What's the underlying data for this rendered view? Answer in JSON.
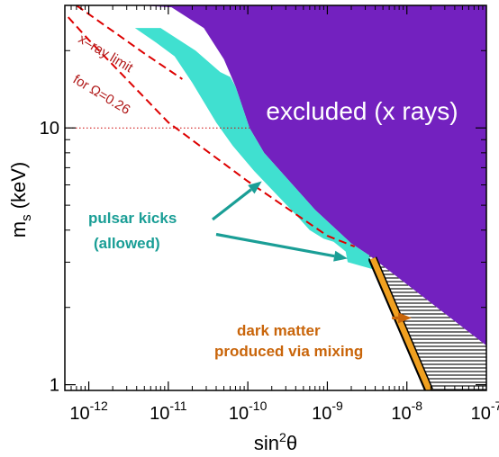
{
  "chart_data": {
    "type": "area",
    "title": "",
    "xlabel": "sin",
    "xlabel_sup": "2",
    "xlabel_tail": "θ",
    "ylabel": "m",
    "ylabel_sub": "s",
    "ylabel_tail": " (keV)",
    "x_scale": "log",
    "y_scale": "log",
    "xlim": [
      5e-13,
      1e-07
    ],
    "ylim": [
      0.95,
      30
    ],
    "x_ticks": [
      {
        "value": 1e-12,
        "label": "10",
        "exp": "-12"
      },
      {
        "value": 1e-11,
        "label": "10",
        "exp": "-11"
      },
      {
        "value": 1e-10,
        "label": "10",
        "exp": "-10"
      },
      {
        "value": 1e-09,
        "label": "10",
        "exp": "-9"
      },
      {
        "value": 1e-08,
        "label": "10",
        "exp": "-8"
      },
      {
        "value": 1e-07,
        "label": "10",
        "exp": "-7"
      }
    ],
    "y_ticks": [
      {
        "value": 1,
        "label": "1"
      },
      {
        "value": 10,
        "label": "10"
      }
    ],
    "regions": [
      {
        "id": "excluded",
        "label": "excluded (x rays)",
        "color": "#7321bf",
        "points": [
          [
            4.3e-12,
            30
          ],
          [
            1e-07,
            30
          ],
          [
            1e-07,
            1.42
          ],
          [
            3.3e-09,
            3.2
          ],
          [
            2e-09,
            3.55
          ],
          [
            7e-10,
            4.8
          ],
          [
            1.6e-10,
            8.0
          ],
          [
            1.05e-10,
            10.0
          ],
          [
            7e-11,
            14.5
          ],
          [
            5e-11,
            18.5
          ],
          [
            2.8e-11,
            24.5
          ],
          [
            1.1e-11,
            29.5
          ]
        ]
      },
      {
        "id": "pulsar-kicks",
        "label": "pulsar kicks",
        "label2": "(allowed)",
        "color": "#40e0d0",
        "points": [
          [
            3.8e-12,
            24.5
          ],
          [
            8e-12,
            24.5
          ],
          [
            2.2e-11,
            20.0
          ],
          [
            4.5e-11,
            16.5
          ],
          [
            6e-11,
            15.8
          ],
          [
            7e-11,
            14.5
          ],
          [
            1.05e-10,
            10.0
          ],
          [
            1.6e-10,
            8.0
          ],
          [
            7e-10,
            4.8
          ],
          [
            2e-09,
            3.55
          ],
          [
            3.3e-09,
            3.2
          ],
          [
            4e-09,
            2.8
          ],
          [
            1.8e-09,
            3.0
          ],
          [
            1.7e-09,
            3.3
          ],
          [
            1.2e-09,
            3.6
          ],
          [
            9e-10,
            3.7
          ],
          [
            6e-10,
            4.0
          ],
          [
            4e-10,
            4.6
          ],
          [
            2.3e-10,
            5.5
          ],
          [
            1.2e-10,
            6.8
          ],
          [
            6.5e-11,
            8.5
          ],
          [
            4e-11,
            10.5
          ],
          [
            2e-11,
            15.0
          ],
          [
            1.2e-11,
            19.0
          ],
          [
            7e-12,
            21.5
          ]
        ]
      },
      {
        "id": "hatched",
        "label": "",
        "color": "#000000",
        "points": [
          [
            3.3e-09,
            3.2
          ],
          [
            1e-07,
            1.42
          ],
          [
            1e-07,
            0.95
          ],
          [
            2e-08,
            0.95
          ],
          [
            4.2e-09,
            2.65
          ]
        ]
      }
    ],
    "lines": [
      {
        "id": "xray-limit",
        "label": "x–ray limit",
        "color": "#dd0000",
        "dash": "dashed",
        "points": [
          [
            7e-13,
            30
          ],
          [
            5e-12,
            19.5
          ],
          [
            1.5e-11,
            15.5
          ]
        ]
      },
      {
        "id": "omega-limit",
        "label": "for Ω=0.26",
        "color": "#dd0000",
        "dash": "dashed",
        "points": [
          [
            5.5e-13,
            27
          ],
          [
            1e-12,
            22
          ],
          [
            1e-11,
            10.5
          ],
          [
            1e-10,
            6.2
          ],
          [
            1e-09,
            3.8
          ],
          [
            2.2e-09,
            3.45
          ]
        ]
      },
      {
        "id": "mixing-band",
        "label": "dark matter",
        "label2": "produced via mixing",
        "color": "#f0a020",
        "points": [
          [
            3.7e-09,
            3.1
          ],
          [
            1.9e-08,
            0.95
          ]
        ]
      },
      {
        "id": "ten-kev-ref",
        "label": "",
        "color": "#cc0000",
        "dash": "dotted",
        "points": [
          [
            5e-13,
            10
          ],
          [
            1.05e-10,
            10
          ]
        ]
      }
    ],
    "annotations": [
      {
        "id": "pulsar-arrow-1",
        "color": "#1a9e96",
        "from": [
          3.6e-11,
          4.4
        ],
        "to": [
          1.5e-10,
          6.2
        ]
      },
      {
        "id": "pulsar-arrow-2",
        "color": "#1a9e96",
        "from": [
          4e-11,
          3.85
        ],
        "to": [
          1.8e-09,
          3.1
        ]
      },
      {
        "id": "mixing-arrow",
        "color": "#c9650a",
        "from": [
          6.5e-09,
          1.82
        ],
        "to": [
          1.15e-08,
          1.82
        ]
      }
    ],
    "grid": false,
    "legend": "none"
  }
}
